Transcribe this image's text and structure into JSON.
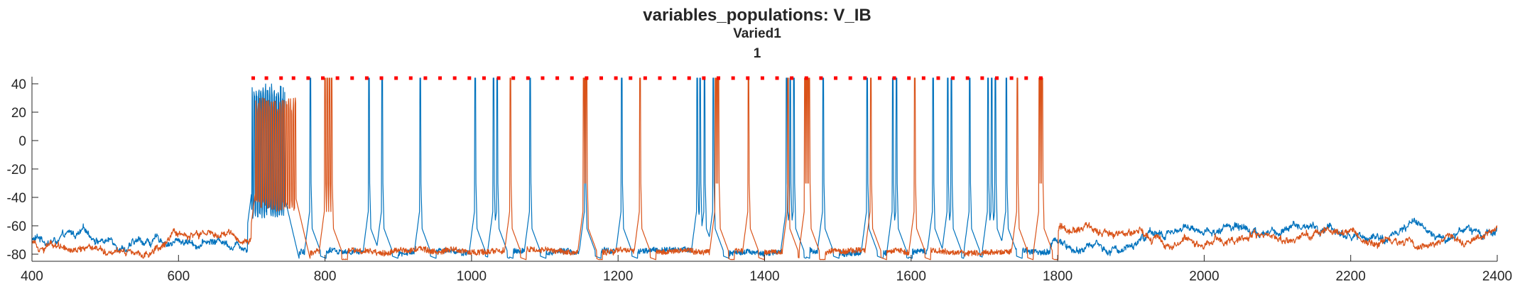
{
  "chart_data": {
    "type": "line",
    "title": "variables_populations: V_IB",
    "subtitle_lines": [
      "Varied1",
      "1"
    ],
    "xlabel": "",
    "ylabel": "",
    "xlim": [
      400,
      2400
    ],
    "ylim": [
      -85,
      45
    ],
    "x_ticks": [
      400,
      600,
      800,
      1000,
      1200,
      1400,
      1600,
      1800,
      2000,
      2200,
      2400
    ],
    "y_ticks": [
      40,
      20,
      0,
      -20,
      -40,
      -60,
      -80
    ],
    "grid": false,
    "legend": "none",
    "baseline_noise_range": [
      -78,
      -62
    ],
    "series": [
      {
        "color": "#0072BD",
        "burst_window": [
          700,
          745
        ],
        "burst_range": [
          -55,
          40
        ],
        "spike_times": [
          780,
          860,
          878,
          930,
          1005,
          1030,
          1035,
          1080,
          1155,
          1205,
          1308,
          1312,
          1318,
          1330,
          1430,
          1435,
          1440,
          1480,
          1540,
          1575,
          1580,
          1630,
          1650,
          1655,
          1680,
          1705,
          1710,
          1715,
          1730
        ],
        "spike_peak": 44,
        "trough": -83
      },
      {
        "color": "#D95319",
        "burst_window": [
          705,
          760
        ],
        "burst_range": [
          -50,
          30
        ],
        "spike_times": [
          800,
          803,
          806,
          809,
          1053,
          1153,
          1155,
          1157,
          1230,
          1333,
          1335,
          1337,
          1378,
          1432,
          1455,
          1457,
          1459,
          1461,
          1545,
          1605,
          1745,
          1775,
          1777,
          1779
        ],
        "spike_peak": 44,
        "trough": -84
      }
    ],
    "marker_color": "#FF0000",
    "marker_y": 44,
    "marker_x": [
      702,
      720,
      740,
      757,
      777,
      797,
      817,
      837,
      857,
      877,
      897,
      917,
      937,
      957,
      977,
      997,
      1017,
      1037,
      1057,
      1077,
      1097,
      1117,
      1137,
      1157,
      1177,
      1197,
      1217,
      1237,
      1257,
      1277,
      1297,
      1317,
      1337,
      1357,
      1377,
      1397,
      1417,
      1437,
      1457,
      1477,
      1497,
      1517,
      1537,
      1557,
      1577,
      1597,
      1617,
      1637,
      1657,
      1677,
      1697,
      1717,
      1737,
      1757,
      1777
    ]
  }
}
